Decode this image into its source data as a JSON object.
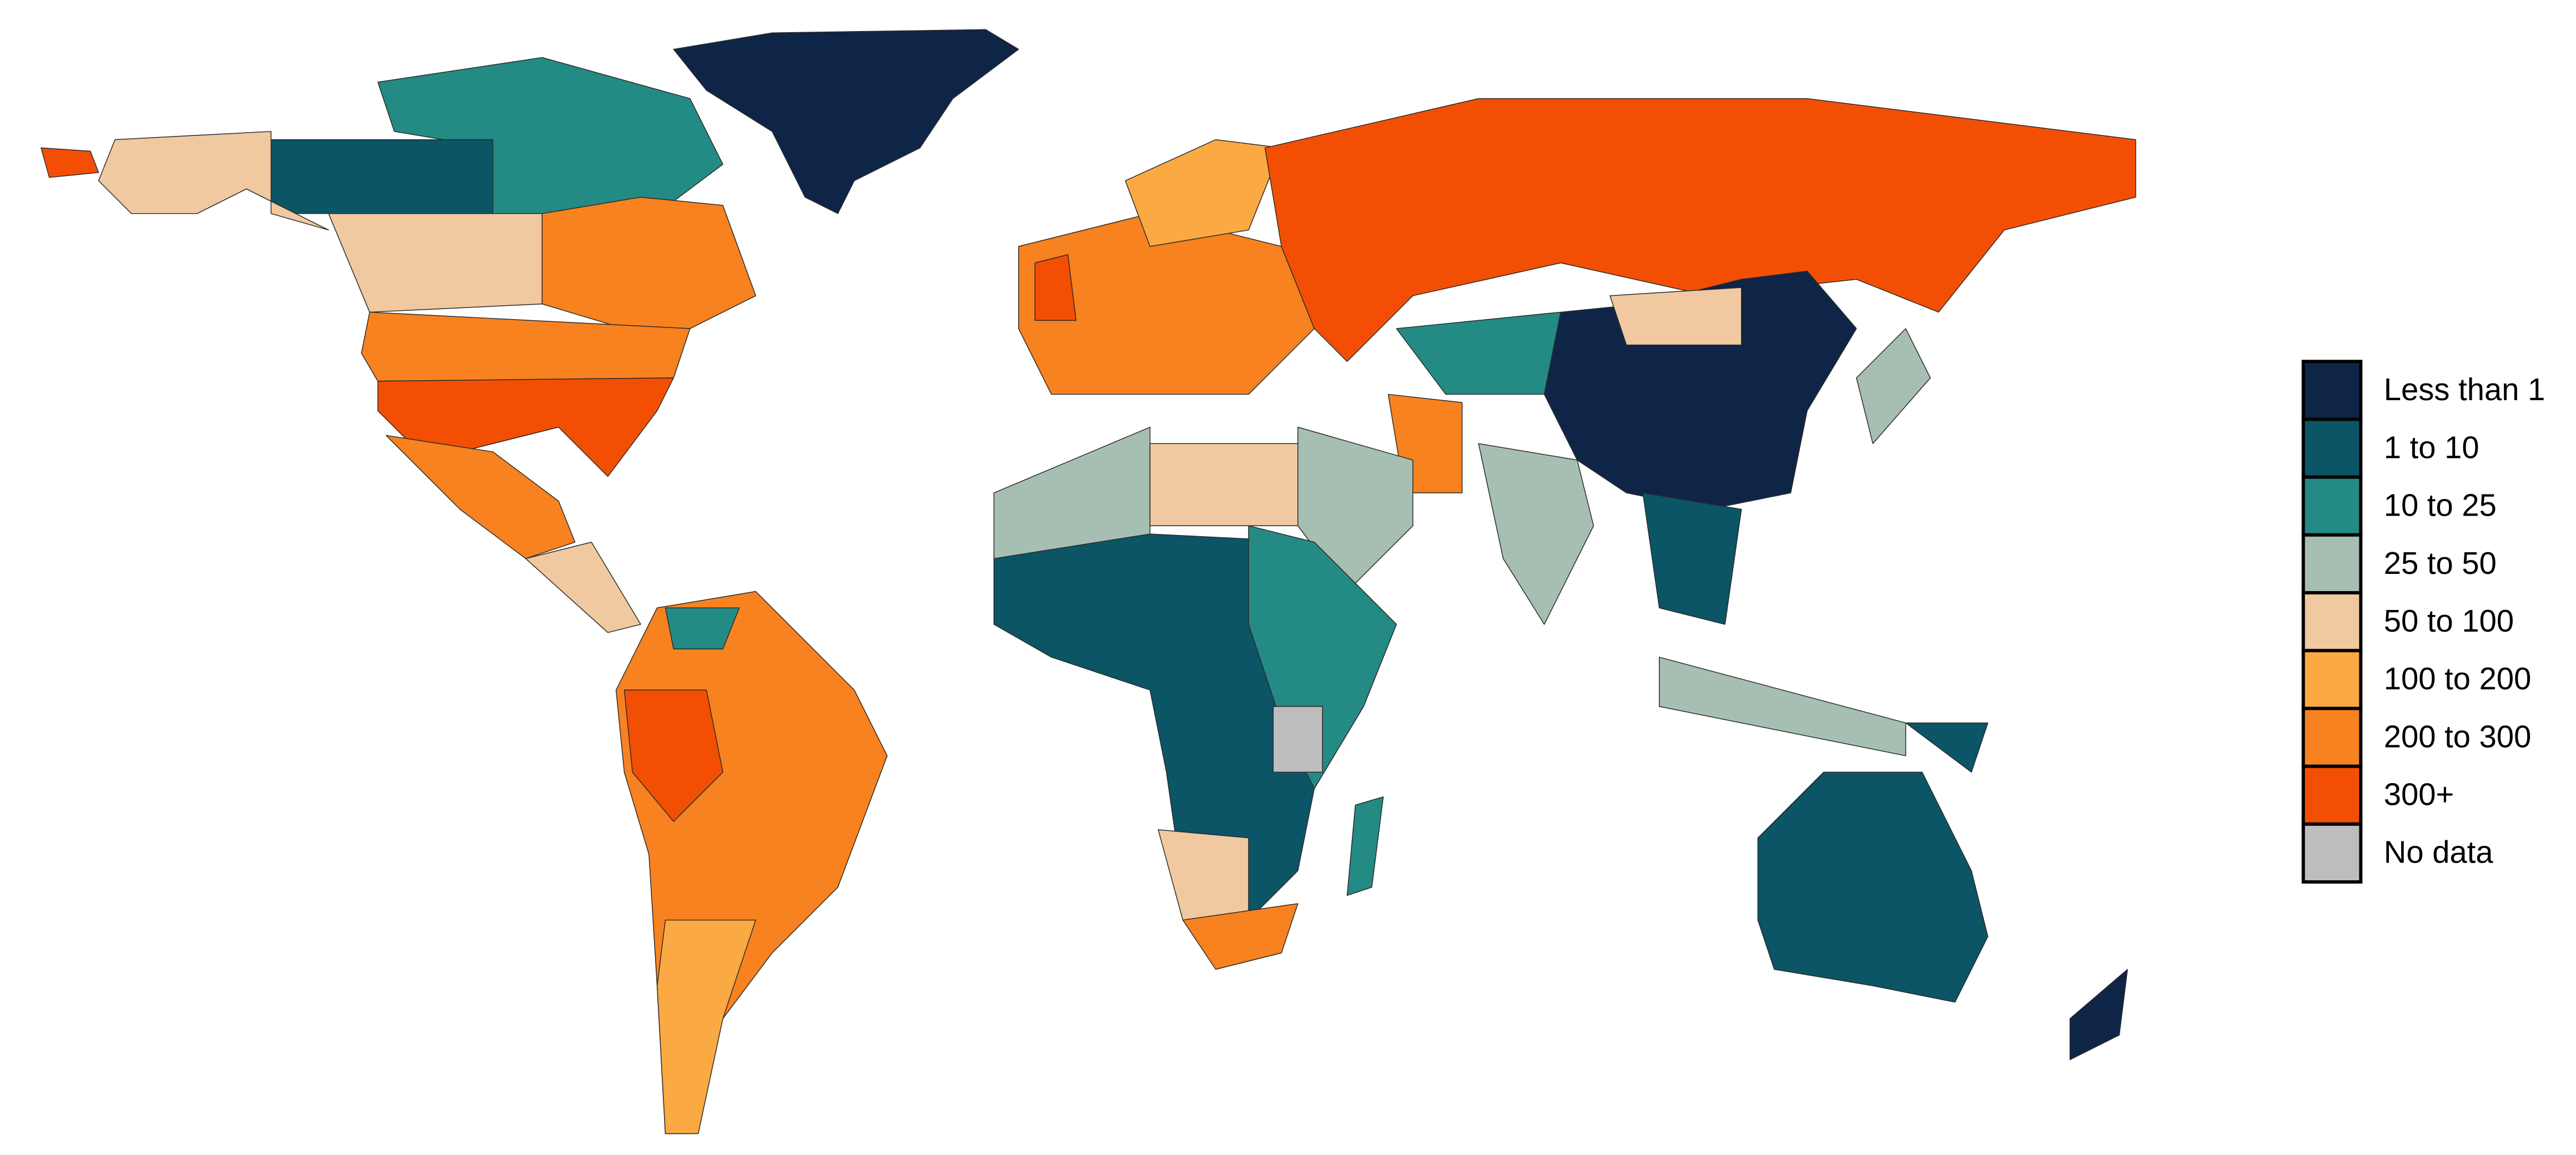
{
  "legend": {
    "items": [
      {
        "label": "Less than 1",
        "color": "#0f2547"
      },
      {
        "label": "1 to 10",
        "color": "#0b5566"
      },
      {
        "label": "10 to 25",
        "color": "#238a84"
      },
      {
        "label": "25 to 50",
        "color": "#a6bfb2"
      },
      {
        "label": "50 to 100",
        "color": "#f0c9a0"
      },
      {
        "label": "100 to 200",
        "color": "#fba943"
      },
      {
        "label": "200 to 300",
        "color": "#f7821f"
      },
      {
        "label": "300+",
        "color": "#f24f05"
      },
      {
        "label": "No data",
        "color": "#bdbdbd"
      }
    ]
  }
}
